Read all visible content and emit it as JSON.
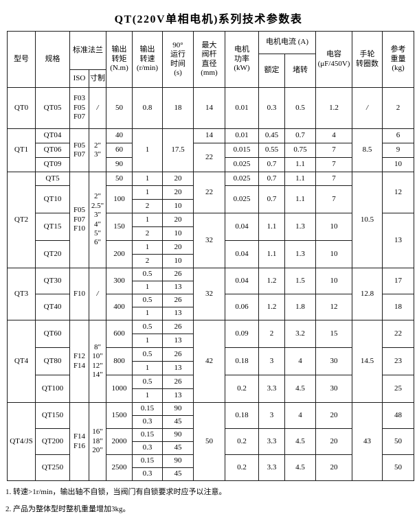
{
  "title": "QT(220V单相电机)系列技术参数表",
  "header": {
    "model": "型号",
    "spec": "规格",
    "flange": "标准法兰",
    "iso": "ISO",
    "inch": "寸制",
    "torque": "输出\n转矩\n(N.m)",
    "speed": "输出\n转速\n(r/min)",
    "time": "90°\n运行\n时间\n(s)",
    "stem": "最大\n阀杆\n直径\n(mm)",
    "power": "电机\n功率\n(kW)",
    "current": "电机电流 (A)",
    "rated": "额定",
    "stall": "堵转",
    "capacitor": "电容\n(μF/450V)",
    "handwheel": "手轮\n转圈数",
    "weight": "参考\n重量\n(kg)"
  },
  "rows": [
    {
      "h": 60,
      "cells": [
        {
          "t": "QT0"
        },
        {
          "t": "QT05"
        },
        {
          "t": "F03\nF05\nF07"
        },
        {
          "t": "/",
          "cls": "slash"
        },
        {
          "t": "50"
        },
        {
          "t": "0.8"
        },
        {
          "t": "18"
        },
        {
          "t": "14"
        },
        {
          "t": "0.01"
        },
        {
          "t": "0.3"
        },
        {
          "t": "0.5"
        },
        {
          "t": "1.2"
        },
        {
          "t": "/",
          "cls": "slash"
        },
        {
          "t": "2"
        }
      ]
    },
    {
      "h": 21,
      "cells": [
        {
          "t": "QT1",
          "rs": 3
        },
        {
          "t": "QT04"
        },
        {
          "t": "F05\nF07",
          "rs": 3
        },
        {
          "t": "2\"\n3\"",
          "rs": 3
        },
        {
          "t": "40"
        },
        {
          "t": "1",
          "rs": 3
        },
        {
          "t": "17.5",
          "rs": 3
        },
        {
          "t": "14"
        },
        {
          "t": "0.01"
        },
        {
          "t": "0.45"
        },
        {
          "t": "0.7"
        },
        {
          "t": "4"
        },
        {
          "t": "8.5",
          "rs": 3
        },
        {
          "t": "6"
        }
      ]
    },
    {
      "h": 21,
      "cells": [
        {
          "t": "QT06"
        },
        {
          "t": "60"
        },
        {
          "t": "22",
          "rs": 2
        },
        {
          "t": "0.015"
        },
        {
          "t": "0.55"
        },
        {
          "t": "0.75"
        },
        {
          "t": "7"
        },
        {
          "t": "9"
        }
      ]
    },
    {
      "h": 21,
      "cells": [
        {
          "t": "QT09"
        },
        {
          "t": "90"
        },
        {
          "t": "0.025"
        },
        {
          "t": "0.7"
        },
        {
          "t": "1.1"
        },
        {
          "t": "7"
        },
        {
          "t": "10"
        }
      ]
    },
    {
      "h": 20,
      "cells": [
        {
          "t": "QT2",
          "rs": 7
        },
        {
          "t": "QT5"
        },
        {
          "t": "F05\nF07\nF10",
          "rs": 7
        },
        {
          "t": "2\"\n2.5\"\n3\"\n4\"\n5\"\n6\"",
          "rs": 7
        },
        {
          "t": "50"
        },
        {
          "t": "1"
        },
        {
          "t": "20"
        },
        {
          "t": "22",
          "rs": 3
        },
        {
          "t": "0.025"
        },
        {
          "t": "0.7"
        },
        {
          "t": "1.1"
        },
        {
          "t": "7"
        },
        {
          "t": "10.5",
          "rs": 7
        },
        {
          "t": "12",
          "rs": 3
        }
      ]
    },
    {
      "h": 20,
      "cells": [
        {
          "t": "QT10",
          "rs": 2
        },
        {
          "t": "100",
          "rs": 2
        },
        {
          "t": "1"
        },
        {
          "t": "20"
        },
        {
          "t": "0.025",
          "rs": 2
        },
        {
          "t": "0.7",
          "rs": 2
        },
        {
          "t": "1.1",
          "rs": 2
        },
        {
          "t": "7",
          "rs": 2
        }
      ]
    },
    {
      "h": 20,
      "cells": [
        {
          "t": "2"
        },
        {
          "t": "10"
        }
      ]
    },
    {
      "h": 20,
      "cells": [
        {
          "t": "QT15",
          "rs": 2
        },
        {
          "t": "150",
          "rs": 2
        },
        {
          "t": "1"
        },
        {
          "t": "20"
        },
        {
          "t": "32",
          "rs": 4
        },
        {
          "t": "0.04",
          "rs": 2
        },
        {
          "t": "1.1",
          "rs": 2
        },
        {
          "t": "1.3",
          "rs": 2
        },
        {
          "t": "10",
          "rs": 2
        },
        {
          "t": "13",
          "rs": 4
        }
      ]
    },
    {
      "h": 20,
      "cells": [
        {
          "t": "2"
        },
        {
          "t": "10"
        }
      ]
    },
    {
      "h": 20,
      "cells": [
        {
          "t": "QT20",
          "rs": 2
        },
        {
          "t": "200",
          "rs": 2
        },
        {
          "t": "1"
        },
        {
          "t": "20"
        },
        {
          "t": "0.04",
          "rs": 2
        },
        {
          "t": "1.1",
          "rs": 2
        },
        {
          "t": "1.3",
          "rs": 2
        },
        {
          "t": "10",
          "rs": 2
        }
      ]
    },
    {
      "h": 20,
      "cells": [
        {
          "t": "2"
        },
        {
          "t": "10"
        }
      ]
    },
    {
      "h": 19,
      "cells": [
        {
          "t": "QT3",
          "rs": 4
        },
        {
          "t": "QT30",
          "rs": 2
        },
        {
          "t": "F10",
          "rs": 4
        },
        {
          "t": "/",
          "cls": "slash",
          "rs": 4
        },
        {
          "t": "300",
          "rs": 2
        },
        {
          "t": "0.5"
        },
        {
          "t": "26"
        },
        {
          "t": "32",
          "rs": 4
        },
        {
          "t": "0.04",
          "rs": 2
        },
        {
          "t": "1.2",
          "rs": 2
        },
        {
          "t": "1.5",
          "rs": 2
        },
        {
          "t": "10",
          "rs": 2
        },
        {
          "t": "12.8",
          "rs": 4
        },
        {
          "t": "17",
          "rs": 2
        }
      ]
    },
    {
      "h": 19,
      "cells": [
        {
          "t": "1"
        },
        {
          "t": "13"
        }
      ]
    },
    {
      "h": 19,
      "cells": [
        {
          "t": "QT40",
          "rs": 2
        },
        {
          "t": "400",
          "rs": 2
        },
        {
          "t": "0.5"
        },
        {
          "t": "26"
        },
        {
          "t": "0.06",
          "rs": 2
        },
        {
          "t": "1.2",
          "rs": 2
        },
        {
          "t": "1.8",
          "rs": 2
        },
        {
          "t": "12",
          "rs": 2
        },
        {
          "t": "18",
          "rs": 2
        }
      ]
    },
    {
      "h": 19,
      "cells": [
        {
          "t": "1"
        },
        {
          "t": "13"
        }
      ]
    },
    {
      "h": 20,
      "cells": [
        {
          "t": "QT4",
          "rs": 6
        },
        {
          "t": "QT60",
          "rs": 2
        },
        {
          "t": "F12\nF14",
          "rs": 6
        },
        {
          "t": "8\"\n10\"\n12\"\n14\"",
          "rs": 6
        },
        {
          "t": "600",
          "rs": 2
        },
        {
          "t": "0.5"
        },
        {
          "t": "26"
        },
        {
          "t": "42",
          "rs": 6
        },
        {
          "t": "0.09",
          "rs": 2
        },
        {
          "t": "2",
          "rs": 2
        },
        {
          "t": "3.2",
          "rs": 2
        },
        {
          "t": "15",
          "rs": 2
        },
        {
          "t": "14.5",
          "rs": 6
        },
        {
          "t": "22",
          "rs": 2
        }
      ]
    },
    {
      "h": 20,
      "cells": [
        {
          "t": "1"
        },
        {
          "t": "13"
        }
      ]
    },
    {
      "h": 20,
      "cells": [
        {
          "t": "QT80",
          "rs": 2
        },
        {
          "t": "800",
          "rs": 2
        },
        {
          "t": "0.5"
        },
        {
          "t": "26"
        },
        {
          "t": "0.18",
          "rs": 2
        },
        {
          "t": "3",
          "rs": 2
        },
        {
          "t": "4",
          "rs": 2
        },
        {
          "t": "30",
          "rs": 2
        },
        {
          "t": "23",
          "rs": 2
        }
      ]
    },
    {
      "h": 20,
      "cells": [
        {
          "t": "1"
        },
        {
          "t": "13"
        }
      ]
    },
    {
      "h": 20,
      "cells": [
        {
          "t": "QT100",
          "rs": 2
        },
        {
          "t": "1000",
          "rs": 2
        },
        {
          "t": "0.5"
        },
        {
          "t": "26"
        },
        {
          "t": "0.2",
          "rs": 2
        },
        {
          "t": "3.3",
          "rs": 2
        },
        {
          "t": "4.5",
          "rs": 2
        },
        {
          "t": "30",
          "rs": 2
        },
        {
          "t": "25",
          "rs": 2
        }
      ]
    },
    {
      "h": 20,
      "cells": [
        {
          "t": "1"
        },
        {
          "t": "13"
        }
      ]
    },
    {
      "h": 19,
      "cells": [
        {
          "t": "QT4/JS",
          "rs": 6
        },
        {
          "t": "QT150",
          "rs": 2
        },
        {
          "t": "F14\nF16",
          "rs": 6
        },
        {
          "t": "16\"\n18\"\n20\"",
          "rs": 6
        },
        {
          "t": "1500",
          "rs": 2
        },
        {
          "t": "0.15"
        },
        {
          "t": "90"
        },
        {
          "t": "50",
          "rs": 6
        },
        {
          "t": "0.18",
          "rs": 2
        },
        {
          "t": "3",
          "rs": 2
        },
        {
          "t": "4",
          "rs": 2
        },
        {
          "t": "20",
          "rs": 2
        },
        {
          "t": "43",
          "rs": 6
        },
        {
          "t": "48",
          "rs": 2
        }
      ]
    },
    {
      "h": 19,
      "cells": [
        {
          "t": "0.3"
        },
        {
          "t": "45"
        }
      ]
    },
    {
      "h": 19,
      "cells": [
        {
          "t": "QT200",
          "rs": 2
        },
        {
          "t": "2000",
          "rs": 2
        },
        {
          "t": "0.15"
        },
        {
          "t": "90"
        },
        {
          "t": "0.2",
          "rs": 2
        },
        {
          "t": "3.3",
          "rs": 2
        },
        {
          "t": "4.5",
          "rs": 2
        },
        {
          "t": "20",
          "rs": 2
        },
        {
          "t": "50",
          "rs": 2
        }
      ]
    },
    {
      "h": 19,
      "cells": [
        {
          "t": "0.3"
        },
        {
          "t": "45"
        }
      ]
    },
    {
      "h": 19,
      "cells": [
        {
          "t": "QT250",
          "rs": 2
        },
        {
          "t": "2500",
          "rs": 2
        },
        {
          "t": "0.15"
        },
        {
          "t": "90"
        },
        {
          "t": "0.2",
          "rs": 2
        },
        {
          "t": "3.3",
          "rs": 2
        },
        {
          "t": "4.5",
          "rs": 2
        },
        {
          "t": "20",
          "rs": 2
        },
        {
          "t": "50",
          "rs": 2
        }
      ]
    },
    {
      "h": 19,
      "cells": [
        {
          "t": "0.3"
        },
        {
          "t": "45"
        }
      ]
    }
  ],
  "notes": [
    "1. 转速>1r/min，输出轴不自锁，当阀门有自锁要求时应予以注意。",
    "2. 产品为整体型时整机重量增加3kg。"
  ]
}
